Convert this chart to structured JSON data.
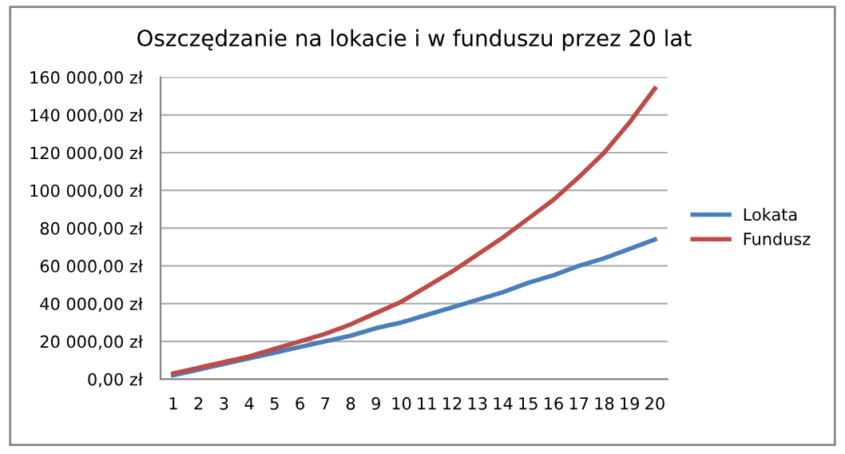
{
  "chart_data": {
    "type": "line",
    "title": "Oszczędzanie na lokacie i w funduszu przez 20 lat",
    "categories": [
      "1",
      "2",
      "3",
      "4",
      "5",
      "6",
      "7",
      "8",
      "9",
      "10",
      "11",
      "12",
      "13",
      "14",
      "15",
      "16",
      "17",
      "18",
      "19",
      "20"
    ],
    "series": [
      {
        "name": "Lokata",
        "color": "#4a7ebb",
        "values": [
          2000,
          5000,
          8000,
          11000,
          14000,
          17000,
          20000,
          23000,
          27000,
          30000,
          34000,
          38000,
          42000,
          46000,
          51000,
          55000,
          60000,
          64000,
          69000,
          74000
        ]
      },
      {
        "name": "Fundusz",
        "color": "#be4b48",
        "values": [
          3000,
          6000,
          9000,
          12000,
          16000,
          20000,
          24000,
          29000,
          35000,
          41000,
          49000,
          57000,
          66000,
          75000,
          85000,
          95000,
          107000,
          120000,
          136000,
          154000
        ]
      }
    ],
    "ylim": [
      0,
      160000
    ],
    "yticks": [
      {
        "value": 0,
        "label": "0,00 zł"
      },
      {
        "value": 20000,
        "label": "20 000,00 zł"
      },
      {
        "value": 40000,
        "label": "40 000,00 zł"
      },
      {
        "value": 60000,
        "label": "60 000,00 zł"
      },
      {
        "value": 80000,
        "label": "80 000,00 zł"
      },
      {
        "value": 100000,
        "label": "100 000,00 zł"
      },
      {
        "value": 120000,
        "label": "120 000,00 zł"
      },
      {
        "value": 140000,
        "label": "140 000,00 zł"
      },
      {
        "value": 160000,
        "label": "160 000,00 zł"
      }
    ],
    "grid": "y",
    "legend": "right",
    "marker": "none",
    "line_style": "solid"
  }
}
